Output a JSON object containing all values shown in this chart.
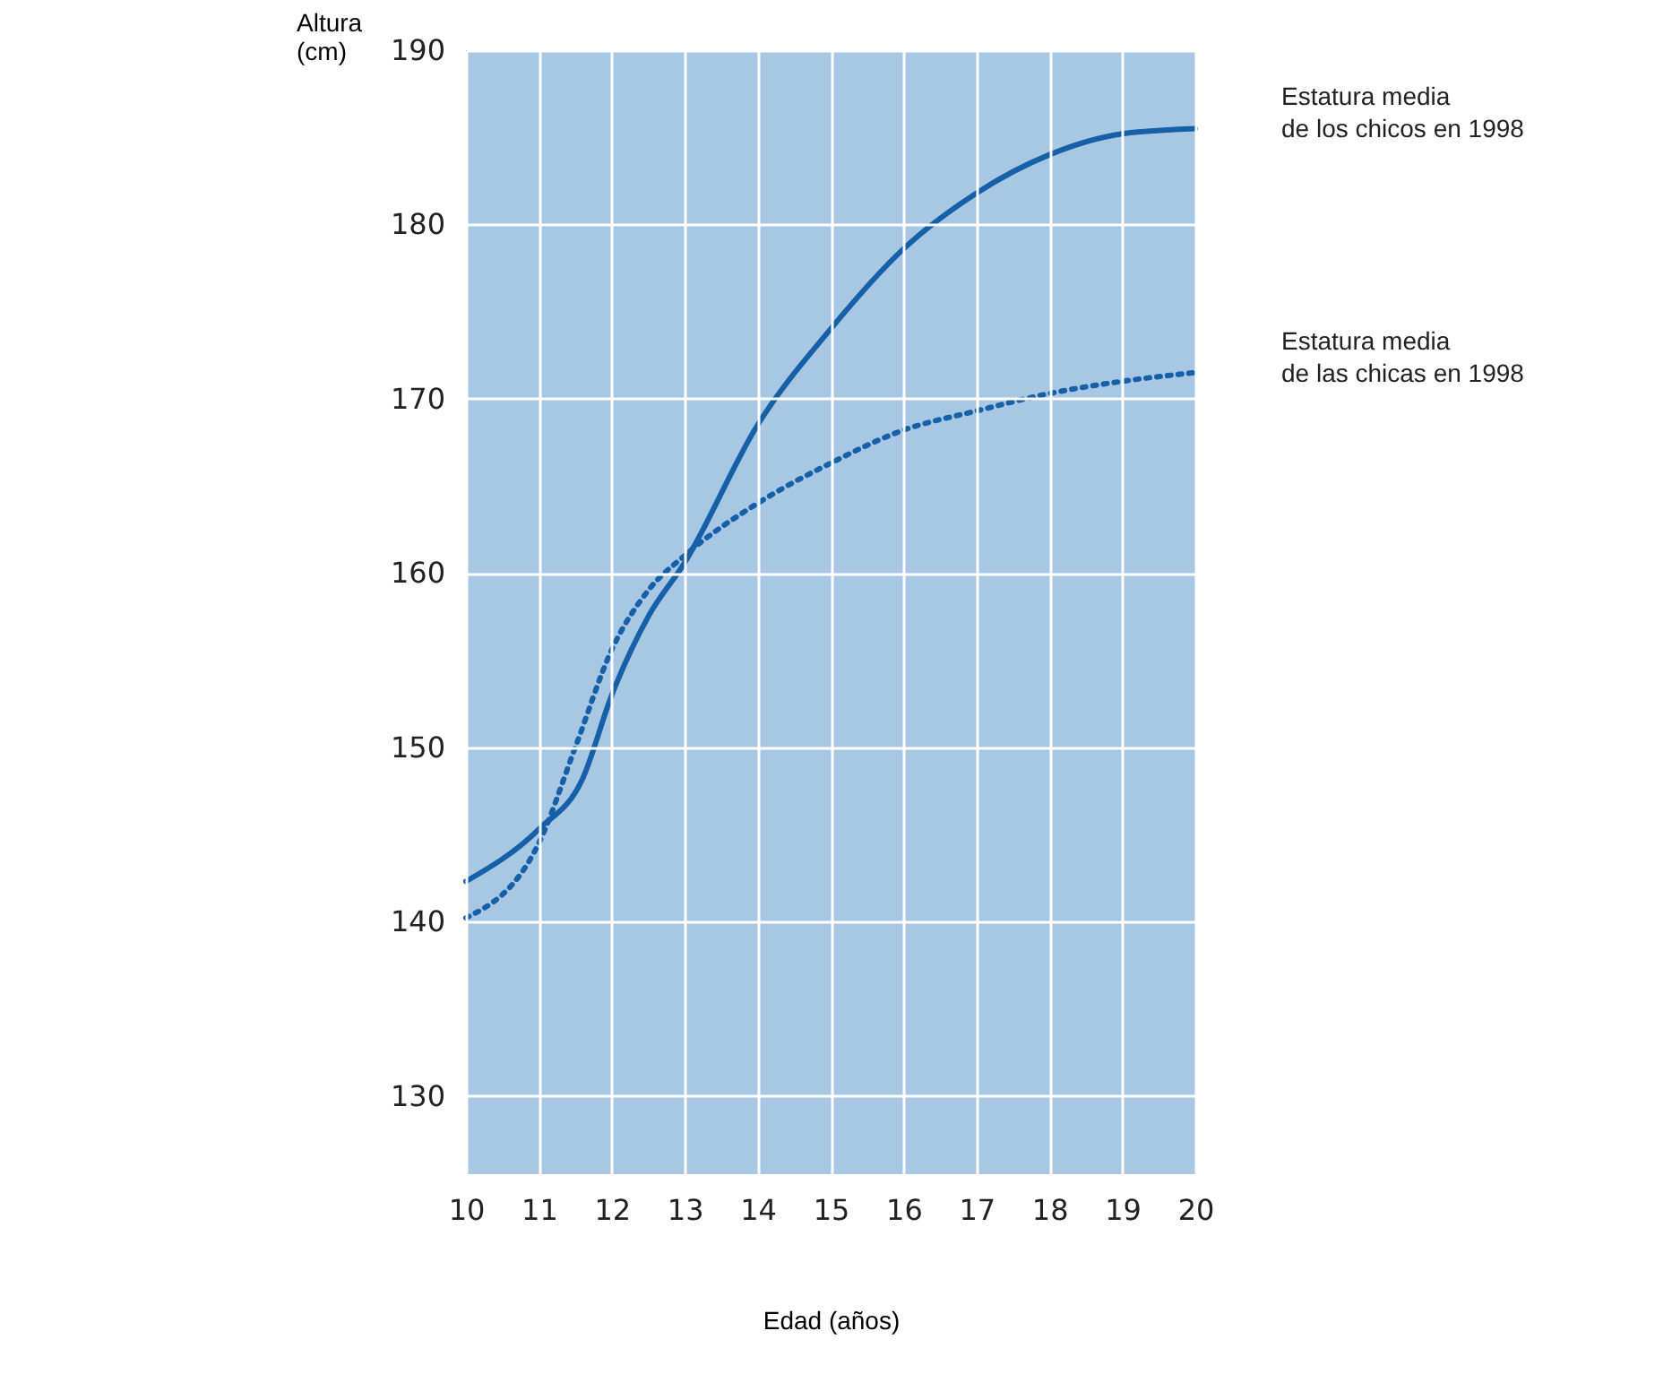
{
  "chart_data": {
    "type": "line",
    "xlabel": "Edad (años)",
    "ylabel": "Altura\n(cm)",
    "xlim": [
      10,
      20
    ],
    "xticks": [
      10,
      11,
      12,
      13,
      14,
      15,
      16,
      17,
      18,
      19,
      20
    ],
    "ylim": [
      125.5,
      190
    ],
    "yticks": [
      130,
      140,
      150,
      160,
      170,
      180,
      190
    ],
    "grid": true,
    "legend": false,
    "series": [
      {
        "name": "Estatura media\nde los chicos en 1998",
        "color": "#1560a8",
        "line_style": "solid",
        "x": [
          10,
          11,
          11.6,
          12,
          12.5,
          13,
          14,
          15,
          16,
          17,
          18,
          19,
          20
        ],
        "values": [
          142.3,
          145.3,
          148.2,
          153,
          157.5,
          160.6,
          168.5,
          174,
          178.6,
          181.8,
          184,
          185.2,
          185.5
        ]
      },
      {
        "name": "Estatura media\nde las chicas en 1998",
        "color": "#1560a8",
        "line_style": "dotted",
        "x": [
          10,
          11,
          11.5,
          12,
          12.5,
          13,
          14,
          15,
          16,
          17,
          18,
          19,
          20
        ],
        "values": [
          140.2,
          144.5,
          150,
          155.6,
          159,
          161,
          164,
          166.3,
          168.2,
          169.3,
          170.3,
          171,
          171.5
        ]
      }
    ]
  }
}
